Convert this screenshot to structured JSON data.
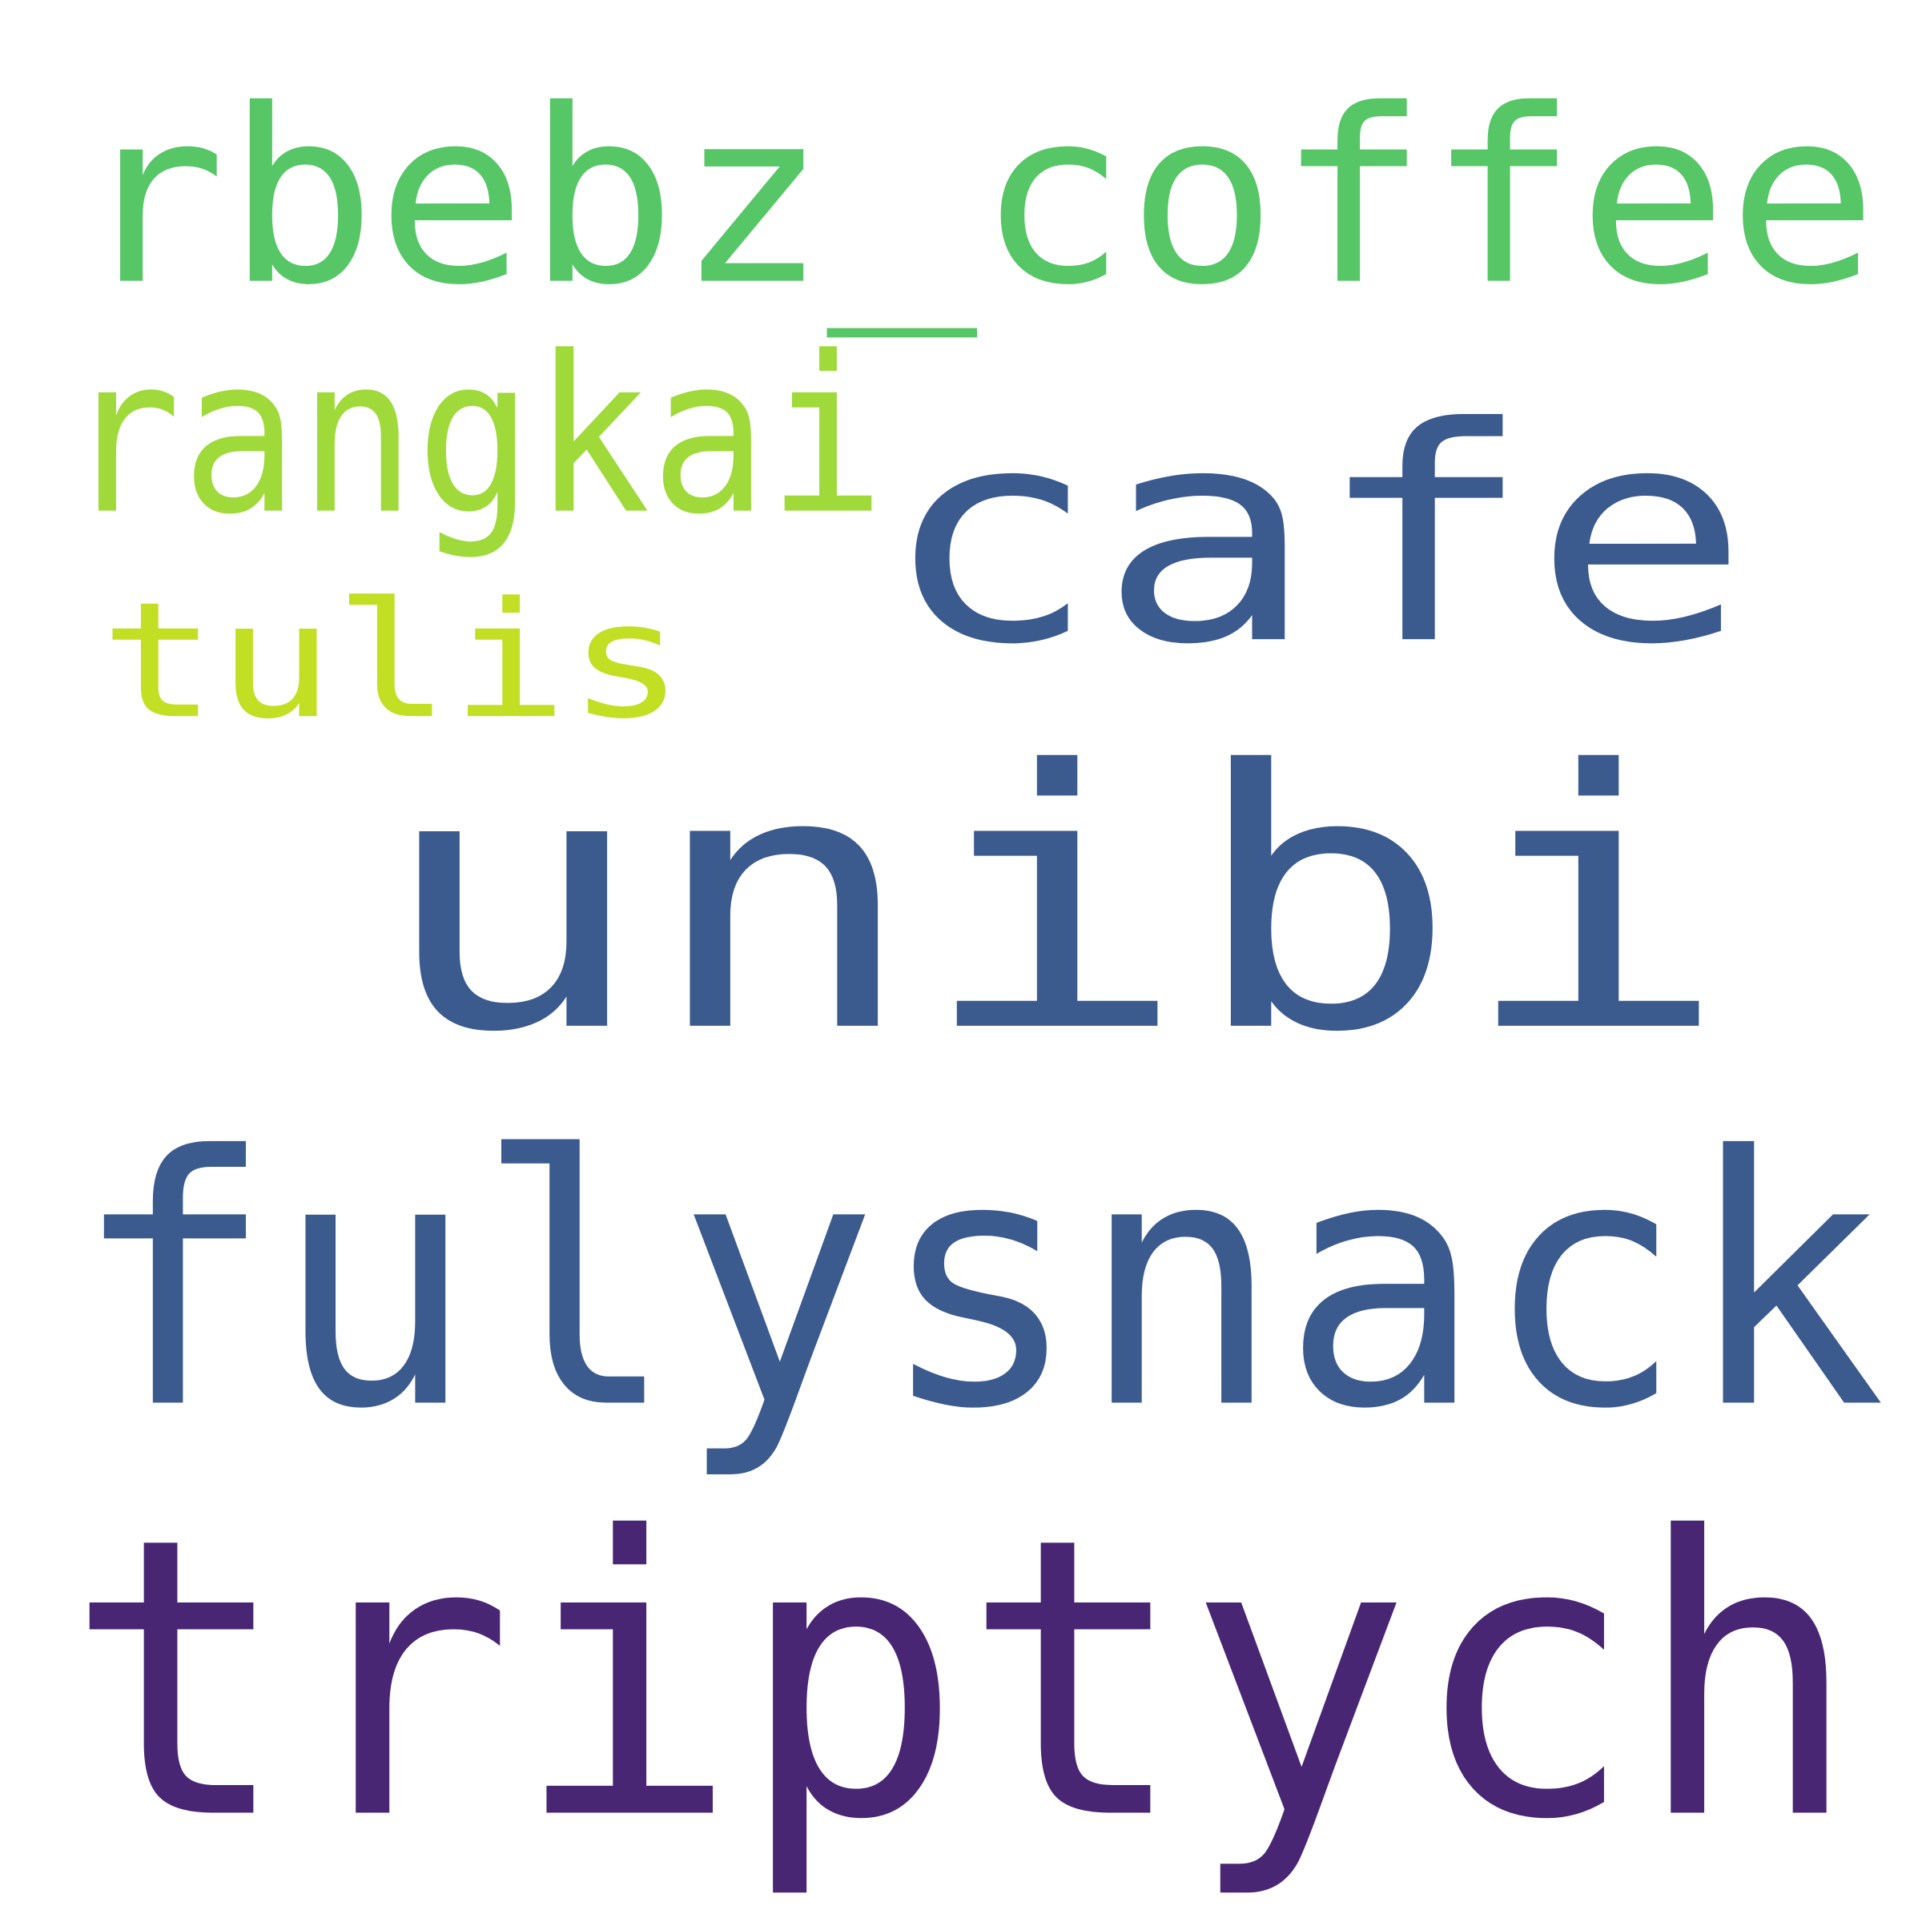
{
  "words": [
    {
      "key": "unibi",
      "text": "unibi",
      "color": "#3b5a8e"
    },
    {
      "key": "triptych",
      "text": "triptych",
      "color": "#482674"
    },
    {
      "key": "fulysnack",
      "text": "fulysnack",
      "color": "#3b5a8e"
    },
    {
      "key": "cafe",
      "text": "cafe",
      "color": "#3b5a8e"
    },
    {
      "key": "rbebz_coffee",
      "text": "rbebz_coffee",
      "color": "#56c667"
    },
    {
      "key": "rangkai",
      "text": "rangkai",
      "color": "#9fda3a"
    },
    {
      "key": "tulis",
      "text": "tulis",
      "color": "#c2df23"
    }
  ]
}
